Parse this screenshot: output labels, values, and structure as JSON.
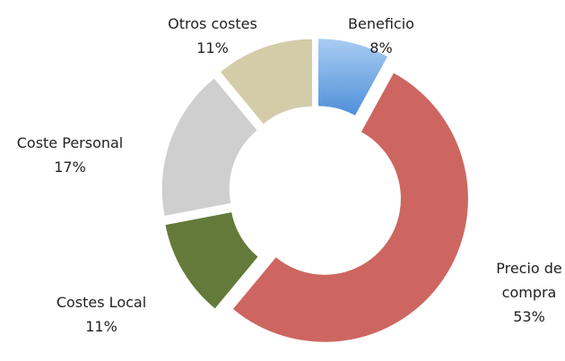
{
  "chart_data": {
    "type": "donut",
    "categories": [
      "Beneficio",
      "Precio de compra",
      "Costes Local",
      "Coste Personal",
      "Otros costes"
    ],
    "values": [
      8,
      53,
      11,
      17,
      11
    ],
    "value_labels": [
      "8%",
      "53%",
      "11%",
      "17%",
      "11%"
    ],
    "colors": [
      "#7fb3ea",
      "#cd6660",
      "#647a3a",
      "#cfcfcf",
      "#d3cca8"
    ]
  }
}
